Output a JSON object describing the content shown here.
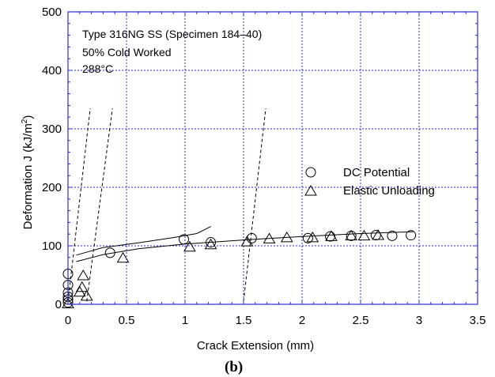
{
  "chart_data": {
    "type": "scatter",
    "title": "",
    "xlabel": "Crack Extension (mm)",
    "ylabel": "Deformation J (kJ/m",
    "ylabel_sup": "2",
    "ylabel_end": ")",
    "xlim": [
      0,
      3.5
    ],
    "ylim": [
      0,
      500
    ],
    "x_ticks": [
      "0",
      "0.5",
      "1",
      "1.5",
      "2",
      "2.5",
      "3",
      "3.5"
    ],
    "y_ticks": [
      "0",
      "100",
      "200",
      "300",
      "400",
      "500"
    ],
    "grid": true,
    "annotations": [
      "Type 316NG SS (Specimen 184–40)",
      "50% Cold Worked",
      "288°C"
    ],
    "panel_label": "(b)",
    "legend_position": "right",
    "series": [
      {
        "name": "DC Potential",
        "marker": "circle",
        "points": [
          [
            0.0,
            3
          ],
          [
            0.0,
            8
          ],
          [
            0.0,
            13
          ],
          [
            0.0,
            20
          ],
          [
            0.0,
            33
          ],
          [
            0.0,
            52
          ],
          [
            0.36,
            88
          ],
          [
            0.99,
            111
          ],
          [
            1.22,
            106
          ],
          [
            1.57,
            113
          ],
          [
            2.05,
            113
          ],
          [
            2.24,
            116
          ],
          [
            2.42,
            117
          ],
          [
            2.63,
            118
          ],
          [
            2.77,
            117
          ],
          [
            2.93,
            118
          ]
        ]
      },
      {
        "name": "Elastic Unloading",
        "marker": "triangle",
        "points": [
          [
            0.0,
            2
          ],
          [
            0.1,
            22
          ],
          [
            0.12,
            30
          ],
          [
            0.13,
            50
          ],
          [
            0.16,
            15
          ],
          [
            0.47,
            80
          ],
          [
            1.04,
            99
          ],
          [
            1.22,
            103
          ],
          [
            1.53,
            108
          ],
          [
            1.72,
            113
          ],
          [
            1.87,
            115
          ],
          [
            2.09,
            115
          ],
          [
            2.25,
            117
          ],
          [
            2.42,
            118
          ],
          [
            2.53,
            118
          ],
          [
            2.65,
            119
          ]
        ]
      }
    ],
    "fit_lines": [
      {
        "style": "solid",
        "points": [
          [
            0.07,
            84
          ],
          [
            0.3,
            97
          ],
          [
            0.6,
            105
          ],
          [
            0.9,
            114
          ],
          [
            1.1,
            121
          ],
          [
            1.22,
            133
          ]
        ]
      },
      {
        "style": "solid",
        "points": [
          [
            0.07,
            73
          ],
          [
            0.3,
            85
          ],
          [
            0.6,
            95
          ],
          [
            1.0,
            103
          ],
          [
            1.5,
            110
          ],
          [
            2.0,
            116
          ],
          [
            2.5,
            121
          ],
          [
            2.95,
            124
          ]
        ]
      }
    ],
    "offset_lines": [
      {
        "style": "dashed",
        "points": [
          [
            0.0,
            5
          ],
          [
            0.19,
            335
          ]
        ]
      },
      {
        "style": "dashed",
        "points": [
          [
            0.16,
            5
          ],
          [
            0.38,
            335
          ]
        ]
      },
      {
        "style": "dashed",
        "points": [
          [
            1.5,
            5
          ],
          [
            1.69,
            335
          ]
        ]
      }
    ],
    "colors": {
      "grid": "#2b2bd4",
      "axis": "#2b2bd4",
      "marks": "#000000"
    }
  }
}
